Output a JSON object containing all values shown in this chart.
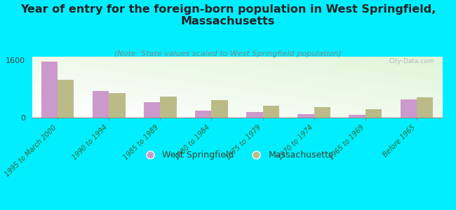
{
  "title": "Year of entry for the foreign-born population in West Springfield,\nMassachusetts",
  "subtitle": "(Note: State values scaled to West Springfield population)",
  "categories": [
    "1995 to March 2000",
    "1990 to 1994",
    "1985 to 1989",
    "1980 to 1984",
    "1975 to 1979",
    "1970 to 1974",
    "1965 to 1969",
    "Before 1965"
  ],
  "west_springfield": [
    1570,
    750,
    430,
    200,
    150,
    100,
    80,
    500
  ],
  "massachusetts": [
    1050,
    680,
    590,
    490,
    330,
    290,
    240,
    570
  ],
  "ws_color": "#cc99cc",
  "ma_color": "#bbbb88",
  "background_color": "#00eeff",
  "ylim": [
    0,
    1700
  ],
  "yticks": [
    0,
    1600
  ],
  "title_fontsize": 11.5,
  "subtitle_fontsize": 8,
  "tick_fontsize": 8,
  "watermark": "City-Data.com",
  "legend_ws": "West Springfield",
  "legend_ma": "Massachusetts"
}
